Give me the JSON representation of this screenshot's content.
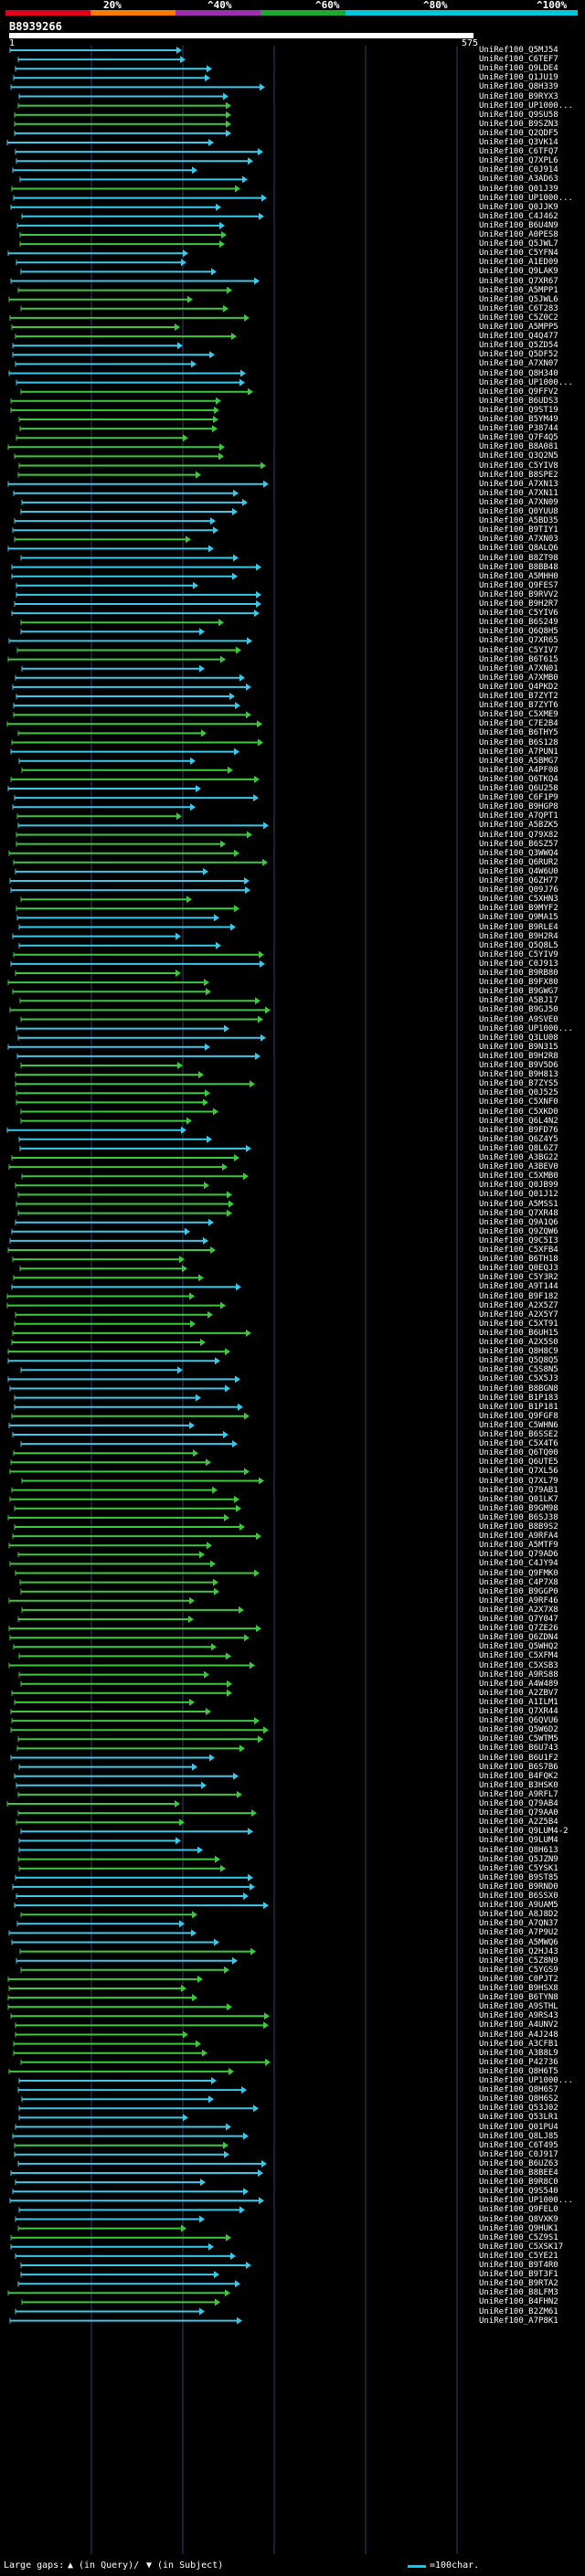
{
  "scale": {
    "labels": [
      "20%",
      "^40%",
      "^60%",
      "^80%",
      "^100%"
    ],
    "colors": [
      "#e0001b",
      "#ff7a00",
      "#9b2fae",
      "#1ea82f",
      "#00c8d8"
    ]
  },
  "query": {
    "id": "B8939266",
    "start": "1",
    "end": "575"
  },
  "colors": {
    "green": "#3ec83e",
    "cyan": "#3cc8e8",
    "grid": "#3a3a6a"
  },
  "hits": [
    {
      "name": "UniRef100_Q5MJ54",
      "color": "cyan"
    },
    {
      "name": "UniRef100_C6TEF7",
      "color": "cyan"
    },
    {
      "name": "UniRef100_Q9LDE4",
      "color": "cyan"
    },
    {
      "name": "UniRef100_Q1JU19",
      "color": "cyan"
    },
    {
      "name": "UniRef100_Q8H339",
      "color": "cyan"
    },
    {
      "name": "UniRef100_B9RYX3",
      "color": "cyan"
    },
    {
      "name": "UniRef100_UP1000...",
      "color": "green"
    },
    {
      "name": "UniRef100_Q9SU58",
      "color": "green"
    },
    {
      "name": "UniRef100_B9SZN3",
      "color": "green"
    },
    {
      "name": "UniRef100_Q2QDF5",
      "color": "cyan"
    },
    {
      "name": "UniRef100_Q3VK14",
      "color": "cyan"
    },
    {
      "name": "UniRef100_C6TFQ7",
      "color": "cyan"
    },
    {
      "name": "UniRef100_Q7XPL6",
      "color": "cyan"
    },
    {
      "name": "UniRef100_C0J914",
      "color": "cyan"
    },
    {
      "name": "UniRef100_A3AD63",
      "color": "cyan"
    },
    {
      "name": "UniRef100_Q01J39",
      "color": "green"
    },
    {
      "name": "UniRef100_UP1000...",
      "color": "cyan"
    },
    {
      "name": "UniRef100_Q0JJK9",
      "color": "cyan"
    },
    {
      "name": "UniRef100_C4J462",
      "color": "cyan"
    },
    {
      "name": "UniRef100_B6U4N9",
      "color": "cyan"
    },
    {
      "name": "UniRef100_A0PES8",
      "color": "green"
    },
    {
      "name": "UniRef100_Q5JWL7",
      "color": "green"
    },
    {
      "name": "UniRef100_C5YFN4",
      "color": "cyan"
    },
    {
      "name": "UniRef100_A1ED09",
      "color": "cyan"
    },
    {
      "name": "UniRef100_Q9LAK9",
      "color": "cyan"
    },
    {
      "name": "UniRef100_Q7XR67",
      "color": "cyan"
    },
    {
      "name": "UniRef100_A5MPP1",
      "color": "green"
    },
    {
      "name": "UniRef100_Q5JWL6",
      "color": "green"
    },
    {
      "name": "UniRef100_C6T283",
      "color": "green"
    },
    {
      "name": "UniRef100_C5Z0C2",
      "color": "green"
    },
    {
      "name": "UniRef100_A5MPP5",
      "color": "green"
    },
    {
      "name": "UniRef100_Q4Q477",
      "color": "green"
    },
    {
      "name": "UniRef100_Q5ZD54",
      "color": "cyan"
    },
    {
      "name": "UniRef100_Q5DF52",
      "color": "cyan"
    },
    {
      "name": "UniRef100_A7XN07",
      "color": "cyan"
    },
    {
      "name": "UniRef100_Q8H340",
      "color": "cyan"
    },
    {
      "name": "UniRef100_UP1000...",
      "color": "cyan"
    },
    {
      "name": "UniRef100_Q9FFV2",
      "color": "green"
    },
    {
      "name": "UniRef100_B6UDS3",
      "color": "green"
    },
    {
      "name": "UniRef100_Q9ST19",
      "color": "green"
    },
    {
      "name": "UniRef100_B5YM49",
      "color": "green"
    },
    {
      "name": "UniRef100_P38744",
      "color": "green"
    },
    {
      "name": "UniRef100_Q7F4Q5",
      "color": "green"
    },
    {
      "name": "UniRef100_B8A081",
      "color": "green"
    },
    {
      "name": "UniRef100_Q3Q2N5",
      "color": "green"
    },
    {
      "name": "UniRef100_C5YIV8",
      "color": "green"
    },
    {
      "name": "UniRef100_B8SPE2",
      "color": "green"
    },
    {
      "name": "UniRef100_A7XN13",
      "color": "cyan"
    },
    {
      "name": "UniRef100_A7XN11",
      "color": "cyan"
    },
    {
      "name": "UniRef100_A7XN09",
      "color": "cyan"
    },
    {
      "name": "UniRef100_Q0YUU8",
      "color": "cyan"
    },
    {
      "name": "UniRef100_A5BD35",
      "color": "cyan"
    },
    {
      "name": "UniRef100_B9TIY1",
      "color": "cyan"
    },
    {
      "name": "UniRef100_A7XN03",
      "color": "green"
    },
    {
      "name": "UniRef100_Q8ALQ6",
      "color": "cyan"
    },
    {
      "name": "UniRef100_B8ZT98",
      "color": "cyan"
    },
    {
      "name": "UniRef100_B8BB48",
      "color": "cyan"
    },
    {
      "name": "UniRef100_A5MHH0",
      "color": "cyan"
    },
    {
      "name": "UniRef100_Q9FES7",
      "color": "cyan"
    },
    {
      "name": "UniRef100_B9RVV2",
      "color": "cyan"
    },
    {
      "name": "UniRef100_B9H2R7",
      "color": "cyan"
    },
    {
      "name": "UniRef100_C5YIV6",
      "color": "cyan"
    },
    {
      "name": "UniRef100_B6S249",
      "color": "green"
    },
    {
      "name": "UniRef100_Q6Q8H5",
      "color": "cyan"
    },
    {
      "name": "UniRef100_Q7XR65",
      "color": "cyan"
    },
    {
      "name": "UniRef100_C5YIV7",
      "color": "green"
    },
    {
      "name": "UniRef100_B6T615",
      "color": "green"
    },
    {
      "name": "UniRef100_A7XN01",
      "color": "cyan"
    },
    {
      "name": "UniRef100_A7XMB0",
      "color": "cyan"
    },
    {
      "name": "UniRef100_Q4PKD2",
      "color": "cyan"
    },
    {
      "name": "UniRef100_B7ZYT2",
      "color": "cyan"
    },
    {
      "name": "UniRef100_B7ZYT6",
      "color": "cyan"
    },
    {
      "name": "UniRef100_C5XME9",
      "color": "green"
    },
    {
      "name": "UniRef100_C7E2B4",
      "color": "green"
    },
    {
      "name": "UniRef100_B6THY5",
      "color": "green"
    },
    {
      "name": "UniRef100_B6S128",
      "color": "green"
    },
    {
      "name": "UniRef100_A7PUN1",
      "color": "cyan"
    },
    {
      "name": "UniRef100_A5BMG7",
      "color": "cyan"
    },
    {
      "name": "UniRef100_A4PF08",
      "color": "green"
    },
    {
      "name": "UniRef100_Q6TKQ4",
      "color": "green"
    },
    {
      "name": "UniRef100_Q6U258",
      "color": "cyan"
    },
    {
      "name": "UniRef100_C6F1P9",
      "color": "cyan"
    },
    {
      "name": "UniRef100_B9HGP8",
      "color": "cyan"
    },
    {
      "name": "UniRef100_A7QPT1",
      "color": "green"
    },
    {
      "name": "UniRef100_A5BZK5",
      "color": "cyan"
    },
    {
      "name": "UniRef100_Q79X82",
      "color": "green"
    },
    {
      "name": "UniRef100_B6SZ57",
      "color": "green"
    },
    {
      "name": "UniRef100_Q3WWQ4",
      "color": "green"
    },
    {
      "name": "UniRef100_Q6RUR2",
      "color": "green"
    },
    {
      "name": "UniRef100_Q4W6U0",
      "color": "cyan"
    },
    {
      "name": "UniRef100_Q6ZH77",
      "color": "cyan"
    },
    {
      "name": "UniRef100_Q09J76",
      "color": "cyan"
    },
    {
      "name": "UniRef100_C5XHN3",
      "color": "green"
    },
    {
      "name": "UniRef100_B9MYF2",
      "color": "green"
    },
    {
      "name": "UniRef100_Q9MA15",
      "color": "cyan"
    },
    {
      "name": "UniRef100_B9RLE4",
      "color": "cyan"
    },
    {
      "name": "UniRef100_B9H2R4",
      "color": "cyan"
    },
    {
      "name": "UniRef100_Q5Q8L5",
      "color": "cyan"
    },
    {
      "name": "UniRef100_C5YIV9",
      "color": "green"
    },
    {
      "name": "UniRef100_C0J913",
      "color": "cyan"
    },
    {
      "name": "UniRef100_B9RB80",
      "color": "green"
    },
    {
      "name": "UniRef100_B9FX80",
      "color": "green"
    },
    {
      "name": "UniRef100_B9GWG7",
      "color": "green"
    },
    {
      "name": "UniRef100_A5BJ17",
      "color": "green"
    },
    {
      "name": "UniRef100_B9GJ50",
      "color": "green"
    },
    {
      "name": "UniRef100_A9SVE0",
      "color": "green"
    },
    {
      "name": "UniRef100_UP1000...",
      "color": "cyan"
    },
    {
      "name": "UniRef100_Q3LU08",
      "color": "cyan"
    },
    {
      "name": "UniRef100_B9N315",
      "color": "cyan"
    },
    {
      "name": "UniRef100_B9H2R8",
      "color": "cyan"
    },
    {
      "name": "UniRef100_B9V5D6",
      "color": "green"
    },
    {
      "name": "UniRef100_B9H813",
      "color": "green"
    },
    {
      "name": "UniRef100_B7ZYS5",
      "color": "green"
    },
    {
      "name": "UniRef100_Q0J525",
      "color": "green"
    },
    {
      "name": "UniRef100_C5XNF0",
      "color": "green"
    },
    {
      "name": "UniRef100_C5XKD0",
      "color": "green"
    },
    {
      "name": "UniRef100_Q6L4N2",
      "color": "green"
    },
    {
      "name": "UniRef100_B9FD76",
      "color": "cyan"
    },
    {
      "name": "UniRef100_Q6Z4Y5",
      "color": "cyan"
    },
    {
      "name": "UniRef100_Q8L6Z7",
      "color": "cyan"
    },
    {
      "name": "UniRef100_A3BG22",
      "color": "green"
    },
    {
      "name": "UniRef100_A3BEV0",
      "color": "green"
    },
    {
      "name": "UniRef100_C5XMB0",
      "color": "green"
    },
    {
      "name": "UniRef100_Q0JB99",
      "color": "green"
    },
    {
      "name": "UniRef100_Q01J12",
      "color": "green"
    },
    {
      "name": "UniRef100_A5MSS1",
      "color": "green"
    },
    {
      "name": "UniRef100_Q7XR48",
      "color": "green"
    },
    {
      "name": "UniRef100_Q9A1Q6",
      "color": "cyan"
    },
    {
      "name": "UniRef100_Q9ZQW6",
      "color": "cyan"
    },
    {
      "name": "UniRef100_Q9C5I3",
      "color": "cyan"
    },
    {
      "name": "UniRef100_C5XFB4",
      "color": "green"
    },
    {
      "name": "UniRef100_B6TH18",
      "color": "green"
    },
    {
      "name": "UniRef100_Q0EQJ3",
      "color": "green"
    },
    {
      "name": "UniRef100_C5Y3R2",
      "color": "green"
    },
    {
      "name": "UniRef100_A9T144",
      "color": "cyan"
    },
    {
      "name": "UniRef100_B9F182",
      "color": "green"
    },
    {
      "name": "UniRef100_A2X5Z7",
      "color": "green"
    },
    {
      "name": "UniRef100_A2X5Y7",
      "color": "green"
    },
    {
      "name": "UniRef100_C5XT91",
      "color": "green"
    },
    {
      "name": "UniRef100_B6UH15",
      "color": "green"
    },
    {
      "name": "UniRef100_A2X5S0",
      "color": "green"
    },
    {
      "name": "UniRef100_Q8H8C9",
      "color": "green"
    },
    {
      "name": "UniRef100_Q5Q8Q5",
      "color": "cyan"
    },
    {
      "name": "UniRef100_C5S8N5",
      "color": "cyan"
    },
    {
      "name": "UniRef100_C5X5J3",
      "color": "cyan"
    },
    {
      "name": "UniRef100_B8BGN8",
      "color": "cyan"
    },
    {
      "name": "UniRef100_B1P183",
      "color": "cyan"
    },
    {
      "name": "UniRef100_B1P181",
      "color": "cyan"
    },
    {
      "name": "UniRef100_Q9FGF8",
      "color": "green"
    },
    {
      "name": "UniRef100_C5WHN6",
      "color": "cyan"
    },
    {
      "name": "UniRef100_B6SSE2",
      "color": "cyan"
    },
    {
      "name": "UniRef100_C5X4T6",
      "color": "cyan"
    },
    {
      "name": "UniRef100_Q6TQ00",
      "color": "green"
    },
    {
      "name": "UniRef100_Q6UTE5",
      "color": "green"
    },
    {
      "name": "UniRef100_Q7XL56",
      "color": "green"
    },
    {
      "name": "UniRef100_Q7XL79",
      "color": "green"
    },
    {
      "name": "UniRef100_Q79AB1",
      "color": "green"
    },
    {
      "name": "UniRef100_Q01LK7",
      "color": "green"
    },
    {
      "name": "UniRef100_B9GM98",
      "color": "green"
    },
    {
      "name": "UniRef100_B6SJ38",
      "color": "green"
    },
    {
      "name": "UniRef100_B8B9S2",
      "color": "green"
    },
    {
      "name": "UniRef100_A9RFA4",
      "color": "green"
    },
    {
      "name": "UniRef100_A5MTF9",
      "color": "green"
    },
    {
      "name": "UniRef100_Q79AD6",
      "color": "green"
    },
    {
      "name": "UniRef100_C4JY94",
      "color": "green"
    },
    {
      "name": "UniRef100_Q9FMK0",
      "color": "green"
    },
    {
      "name": "UniRef100_C4P7X8",
      "color": "green"
    },
    {
      "name": "UniRef100_B9GGP0",
      "color": "green"
    },
    {
      "name": "UniRef100_A9RF46",
      "color": "green"
    },
    {
      "name": "UniRef100_A2X7X8",
      "color": "green"
    },
    {
      "name": "UniRef100_Q7Y047",
      "color": "green"
    },
    {
      "name": "UniRef100_Q7ZE26",
      "color": "green"
    },
    {
      "name": "UniRef100_Q6ZDN4",
      "color": "green"
    },
    {
      "name": "UniRef100_Q5WHQ2",
      "color": "green"
    },
    {
      "name": "UniRef100_C5XFM4",
      "color": "green"
    },
    {
      "name": "UniRef100_C5XSB3",
      "color": "green"
    },
    {
      "name": "UniRef100_A9RS88",
      "color": "green"
    },
    {
      "name": "UniRef100_A4W489",
      "color": "green"
    },
    {
      "name": "UniRef100_A2ZBV7",
      "color": "green"
    },
    {
      "name": "UniRef100_A1ILM1",
      "color": "green"
    },
    {
      "name": "UniRef100_Q7XR44",
      "color": "green"
    },
    {
      "name": "UniRef100_Q6QVU6",
      "color": "green"
    },
    {
      "name": "UniRef100_Q5W6D2",
      "color": "green"
    },
    {
      "name": "UniRef100_C5WTM5",
      "color": "green"
    },
    {
      "name": "UniRef100_B6U743",
      "color": "green"
    },
    {
      "name": "UniRef100_B6U1F2",
      "color": "cyan"
    },
    {
      "name": "UniRef100_B6S7B6",
      "color": "cyan"
    },
    {
      "name": "UniRef100_B4FQK2",
      "color": "cyan"
    },
    {
      "name": "UniRef100_B3HSK0",
      "color": "cyan"
    },
    {
      "name": "UniRef100_A9RFL7",
      "color": "green"
    },
    {
      "name": "UniRef100_Q79AB4",
      "color": "green"
    },
    {
      "name": "UniRef100_Q79AA0",
      "color": "green"
    },
    {
      "name": "UniRef100_A2Z5B4",
      "color": "green"
    },
    {
      "name": "UniRef100_Q9LUM4-2",
      "color": "cyan"
    },
    {
      "name": "UniRef100_Q9LUM4",
      "color": "cyan"
    },
    {
      "name": "UniRef100_Q8H613",
      "color": "cyan"
    },
    {
      "name": "UniRef100_Q5JZN9",
      "color": "green"
    },
    {
      "name": "UniRef100_C5YSK1",
      "color": "green"
    },
    {
      "name": "UniRef100_B9ST85",
      "color": "cyan"
    },
    {
      "name": "UniRef100_B9RND0",
      "color": "cyan"
    },
    {
      "name": "UniRef100_B6SSX0",
      "color": "cyan"
    },
    {
      "name": "UniRef100_A9UAM5",
      "color": "cyan"
    },
    {
      "name": "UniRef100_A8J8D2",
      "color": "green"
    },
    {
      "name": "UniRef100_A7QN37",
      "color": "cyan"
    },
    {
      "name": "UniRef100_A7P9U2",
      "color": "cyan"
    },
    {
      "name": "UniRef100_A5MWQ6",
      "color": "cyan"
    },
    {
      "name": "UniRef100_Q2HJ43",
      "color": "green"
    },
    {
      "name": "UniRef100_C5Z8N9",
      "color": "cyan"
    },
    {
      "name": "UniRef100_C5YGS9",
      "color": "green"
    },
    {
      "name": "UniRef100_C0PJT2",
      "color": "green"
    },
    {
      "name": "UniRef100_B9HSX8",
      "color": "green"
    },
    {
      "name": "UniRef100_B6TYN8",
      "color": "green"
    },
    {
      "name": "UniRef100_A9STHL",
      "color": "green"
    },
    {
      "name": "UniRef100_A9RS43",
      "color": "green"
    },
    {
      "name": "UniRef100_A4UNV2",
      "color": "green"
    },
    {
      "name": "UniRef100_A4J248",
      "color": "green"
    },
    {
      "name": "UniRef100_A3CFB1",
      "color": "green"
    },
    {
      "name": "UniRef100_A3B8L9",
      "color": "green"
    },
    {
      "name": "UniRef100_P42736",
      "color": "green"
    },
    {
      "name": "UniRef100_Q8H6T5",
      "color": "green"
    },
    {
      "name": "UniRef100_UP1000...",
      "color": "cyan"
    },
    {
      "name": "UniRef100_Q8H6S7",
      "color": "cyan"
    },
    {
      "name": "UniRef100_Q8H6S2",
      "color": "cyan"
    },
    {
      "name": "UniRef100_Q53J02",
      "color": "cyan"
    },
    {
      "name": "UniRef100_Q53LR1",
      "color": "cyan"
    },
    {
      "name": "UniRef100_Q01PU4",
      "color": "cyan"
    },
    {
      "name": "UniRef100_Q8LJ85",
      "color": "cyan"
    },
    {
      "name": "UniRef100_C6T495",
      "color": "green"
    },
    {
      "name": "UniRef100_C0J917",
      "color": "cyan"
    },
    {
      "name": "UniRef100_B6UZ63",
      "color": "cyan"
    },
    {
      "name": "UniRef100_B8BEE4",
      "color": "cyan"
    },
    {
      "name": "UniRef100_B9R8C0",
      "color": "cyan"
    },
    {
      "name": "UniRef100_Q9S540",
      "color": "cyan"
    },
    {
      "name": "UniRef100_UP1000...",
      "color": "cyan"
    },
    {
      "name": "UniRef100_Q9FEL0",
      "color": "cyan"
    },
    {
      "name": "UniRef100_Q8VXK9",
      "color": "cyan"
    },
    {
      "name": "UniRef100_Q9HUK1",
      "color": "green"
    },
    {
      "name": "UniRef100_C5Z9S1",
      "color": "green"
    },
    {
      "name": "UniRef100_C5XSK17",
      "color": "cyan"
    },
    {
      "name": "UniRef100_C5YE21",
      "color": "cyan"
    },
    {
      "name": "UniRef100_B9T4R0",
      "color": "cyan"
    },
    {
      "name": "UniRef100_B9T3F1",
      "color": "cyan"
    },
    {
      "name": "UniRef100_B9RTA2",
      "color": "cyan"
    },
    {
      "name": "UniRef100_B8LFM3",
      "color": "green"
    },
    {
      "name": "UniRef100_B4FHN2",
      "color": "green"
    },
    {
      "name": "UniRef100_B2ZM61",
      "color": "cyan"
    },
    {
      "name": "UniRef100_A7P8K1",
      "color": "cyan"
    }
  ],
  "legend": {
    "prefix": "Large gaps:",
    "query_text": "(in Query)/",
    "subject_text": "(in Subject)",
    "scale_text": "=100char."
  }
}
